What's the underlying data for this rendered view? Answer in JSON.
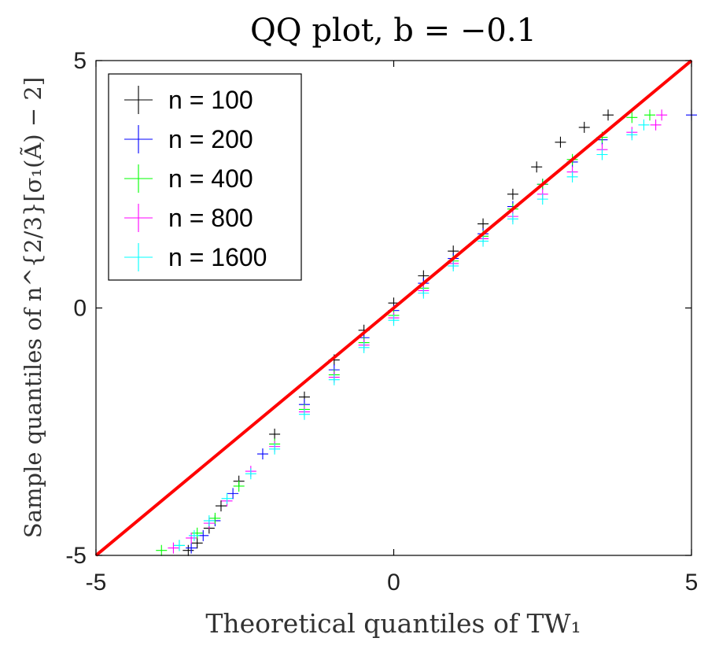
{
  "chart_data": {
    "type": "scatter",
    "title": "QQ plot, b = −0.1",
    "xlabel": "Theoretical quantiles of TW₁",
    "ylabel": "Sample quantiles of n^{2/3}[σ₁(Ã) − 2]",
    "xlim": [
      -5,
      5
    ],
    "ylim": [
      -5,
      5
    ],
    "xticks": [
      "-5",
      "0",
      "5"
    ],
    "yticks": [
      "-5",
      "0",
      "5"
    ],
    "grid": false,
    "legend_position": "top-left",
    "reference_line": {
      "name": "y = x",
      "color": "#ff0000",
      "points": [
        [
          -5,
          -5
        ],
        [
          5,
          5
        ]
      ]
    },
    "series": [
      {
        "name": "n = 100",
        "color": "#000000",
        "marker": "+",
        "points": [
          [
            -3.45,
            -4.9
          ],
          [
            -3.3,
            -4.75
          ],
          [
            -3.1,
            -4.45
          ],
          [
            -2.9,
            -4.0
          ],
          [
            -2.6,
            -3.5
          ],
          [
            -2.0,
            -2.55
          ],
          [
            -1.5,
            -1.8
          ],
          [
            -1.0,
            -1.05
          ],
          [
            -0.5,
            -0.45
          ],
          [
            0.0,
            0.1
          ],
          [
            0.5,
            0.65
          ],
          [
            1.0,
            1.15
          ],
          [
            1.5,
            1.7
          ],
          [
            2.0,
            2.3
          ],
          [
            2.4,
            2.85
          ],
          [
            2.8,
            3.35
          ],
          [
            3.2,
            3.65
          ],
          [
            3.6,
            3.9
          ]
        ]
      },
      {
        "name": "n = 200",
        "color": "#0000ff",
        "marker": "+",
        "points": [
          [
            -3.4,
            -4.85
          ],
          [
            -3.2,
            -4.6
          ],
          [
            -3.0,
            -4.3
          ],
          [
            -2.7,
            -3.75
          ],
          [
            -2.2,
            -2.95
          ],
          [
            -1.5,
            -1.95
          ],
          [
            -1.0,
            -1.25
          ],
          [
            -0.5,
            -0.6
          ],
          [
            0.0,
            -0.05
          ],
          [
            0.5,
            0.5
          ],
          [
            1.0,
            1.0
          ],
          [
            1.5,
            1.5
          ],
          [
            2.0,
            2.05
          ],
          [
            2.5,
            2.5
          ],
          [
            3.0,
            2.95
          ],
          [
            3.5,
            3.4
          ],
          [
            5.0,
            3.9
          ]
        ]
      },
      {
        "name": "n = 400",
        "color": "#00ff00",
        "marker": "+",
        "points": [
          [
            -3.9,
            -4.9
          ],
          [
            -3.6,
            -4.8
          ],
          [
            -3.3,
            -4.55
          ],
          [
            -3.0,
            -4.25
          ],
          [
            -2.6,
            -3.6
          ],
          [
            -2.0,
            -2.75
          ],
          [
            -1.5,
            -2.05
          ],
          [
            -1.0,
            -1.35
          ],
          [
            -0.5,
            -0.7
          ],
          [
            0.0,
            -0.15
          ],
          [
            0.5,
            0.4
          ],
          [
            1.0,
            0.95
          ],
          [
            1.5,
            1.45
          ],
          [
            2.0,
            2.0
          ],
          [
            2.5,
            2.5
          ],
          [
            3.0,
            3.0
          ],
          [
            3.5,
            3.45
          ],
          [
            4.0,
            3.85
          ],
          [
            4.3,
            3.9
          ]
        ]
      },
      {
        "name": "n = 800",
        "color": "#ff00ff",
        "marker": "+",
        "points": [
          [
            -3.7,
            -4.85
          ],
          [
            -3.4,
            -4.65
          ],
          [
            -3.1,
            -4.35
          ],
          [
            -2.8,
            -3.9
          ],
          [
            -2.4,
            -3.3
          ],
          [
            -2.0,
            -2.8
          ],
          [
            -1.5,
            -2.1
          ],
          [
            -1.0,
            -1.4
          ],
          [
            -0.5,
            -0.75
          ],
          [
            0.0,
            -0.2
          ],
          [
            0.5,
            0.35
          ],
          [
            1.0,
            0.9
          ],
          [
            1.5,
            1.4
          ],
          [
            2.0,
            1.85
          ],
          [
            2.5,
            2.3
          ],
          [
            3.0,
            2.75
          ],
          [
            3.5,
            3.2
          ],
          [
            4.0,
            3.55
          ],
          [
            4.4,
            3.7
          ],
          [
            4.5,
            3.9
          ]
        ]
      },
      {
        "name": "n = 1600",
        "color": "#00ffff",
        "marker": "+",
        "points": [
          [
            -3.6,
            -4.8
          ],
          [
            -3.35,
            -4.6
          ],
          [
            -3.1,
            -4.3
          ],
          [
            -2.8,
            -3.85
          ],
          [
            -2.4,
            -3.35
          ],
          [
            -2.0,
            -2.85
          ],
          [
            -1.5,
            -2.15
          ],
          [
            -1.0,
            -1.45
          ],
          [
            -0.5,
            -0.8
          ],
          [
            0.0,
            -0.25
          ],
          [
            0.5,
            0.3
          ],
          [
            1.0,
            0.85
          ],
          [
            1.5,
            1.35
          ],
          [
            2.0,
            1.8
          ],
          [
            2.5,
            2.2
          ],
          [
            3.0,
            2.65
          ],
          [
            3.5,
            3.1
          ],
          [
            4.0,
            3.5
          ],
          [
            4.2,
            3.7
          ]
        ]
      }
    ]
  }
}
